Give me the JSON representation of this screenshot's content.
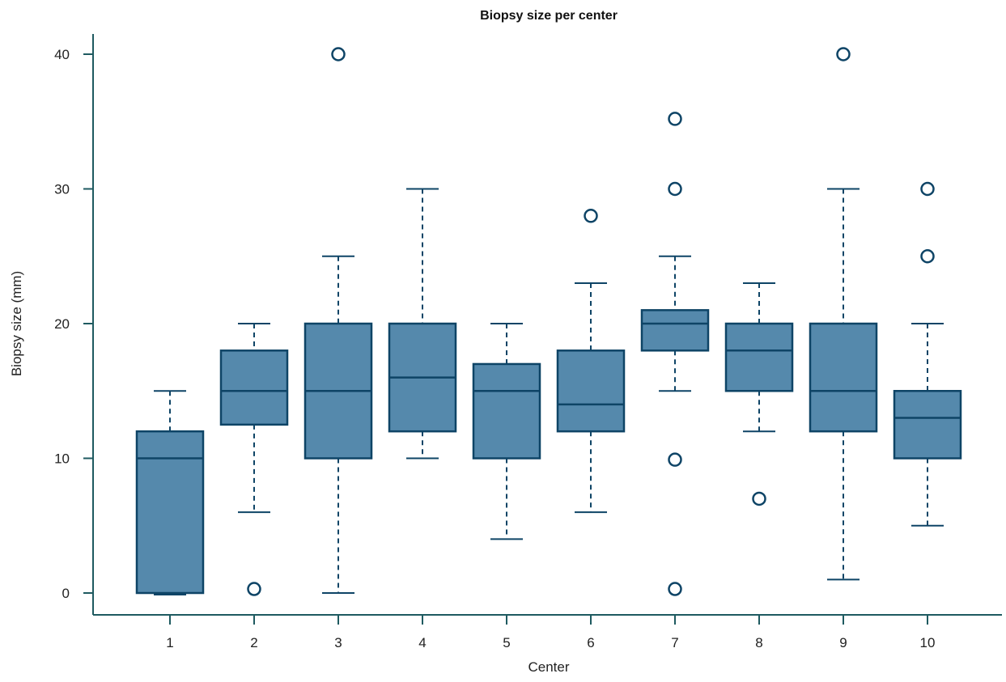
{
  "chart_data": {
    "type": "box",
    "title": "Biopsy size per center",
    "xlabel": "Center",
    "ylabel": "Biopsy size (mm)",
    "ylim": [
      -1.5,
      41.5
    ],
    "yticks": [
      0,
      10,
      20,
      30,
      40
    ],
    "grid": false,
    "colors": {
      "box_fill": "#5589ac",
      "line": "#0e4466",
      "axis": "#1e5a60"
    },
    "boxes": [
      {
        "label": "1",
        "whisker_low": 0,
        "q1": 0,
        "median": 10,
        "q3": 12,
        "whisker_high": 15,
        "outliers": []
      },
      {
        "label": "2",
        "whisker_low": 6,
        "q1": 12.5,
        "median": 15,
        "q3": 18,
        "whisker_high": 20,
        "outliers": [
          0.3
        ]
      },
      {
        "label": "3",
        "whisker_low": 0,
        "q1": 10,
        "median": 15,
        "q3": 20,
        "whisker_high": 25,
        "outliers": [
          40
        ]
      },
      {
        "label": "4",
        "whisker_low": 10,
        "q1": 12,
        "median": 16,
        "q3": 20,
        "whisker_high": 30,
        "outliers": []
      },
      {
        "label": "5",
        "whisker_low": 4,
        "q1": 10,
        "median": 15,
        "q3": 17,
        "whisker_high": 20,
        "outliers": []
      },
      {
        "label": "6",
        "whisker_low": 6,
        "q1": 12,
        "median": 14,
        "q3": 18,
        "whisker_high": 23,
        "outliers": [
          28
        ]
      },
      {
        "label": "7",
        "whisker_low": 15,
        "q1": 18,
        "median": 20,
        "q3": 21,
        "whisker_high": 25,
        "outliers": [
          35.2,
          30,
          9.9,
          0.3
        ]
      },
      {
        "label": "8",
        "whisker_low": 12,
        "q1": 15,
        "median": 18,
        "q3": 20,
        "whisker_high": 23,
        "outliers": [
          7
        ]
      },
      {
        "label": "9",
        "whisker_low": 1,
        "q1": 12,
        "median": 15,
        "q3": 20,
        "whisker_high": 30,
        "outliers": [
          40
        ]
      },
      {
        "label": "10",
        "whisker_low": 5,
        "q1": 10,
        "median": 13,
        "q3": 15,
        "whisker_high": 20,
        "outliers": [
          30,
          25
        ]
      }
    ]
  }
}
